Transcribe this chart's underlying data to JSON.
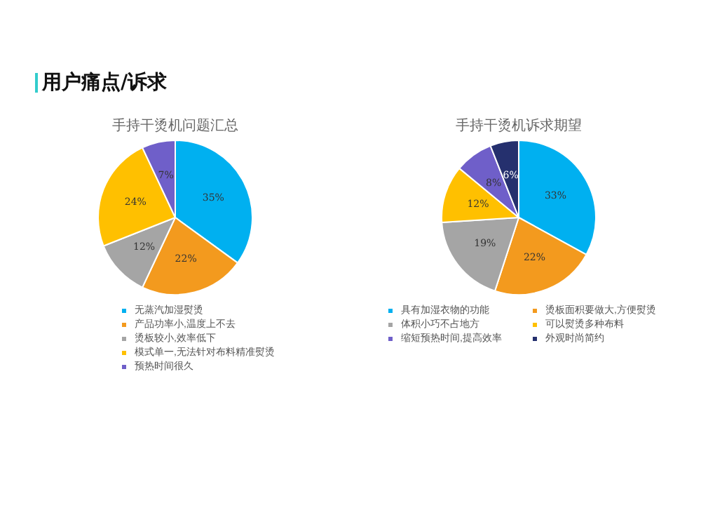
{
  "chart_data": [
    {
      "type": "pie",
      "title": "手持干烫机问题汇总",
      "annotations": [
        "用户痛点/诉求"
      ],
      "categories": [
        "无蒸汽加湿熨烫",
        "产品功率小,温度上不去",
        "烫板较小,效率低下",
        "模式单一,无法针对布料精准熨烫",
        "预热时间很久"
      ],
      "values": [
        35,
        22,
        12,
        24,
        7
      ],
      "colors": [
        "#00b0f0",
        "#f39a1e",
        "#a5a5a5",
        "#ffc000",
        "#6f5fc9"
      ],
      "value_labels": [
        "35%",
        "22%",
        "12%",
        "24%",
        "7%"
      ],
      "legend": "bottom"
    },
    {
      "type": "pie",
      "title": "手持干烫机诉求期望",
      "categories": [
        "具有加湿衣物的功能",
        "烫板面积要做大,方便熨烫",
        "体积小巧不占地方",
        "可以熨烫多种布料",
        "缩短预热时间,提高效率",
        "外观时尚简约"
      ],
      "values": [
        33,
        22,
        19,
        12,
        8,
        6
      ],
      "colors": [
        "#00b0f0",
        "#f39a1e",
        "#a5a5a5",
        "#ffc000",
        "#6f5fc9",
        "#25306e"
      ],
      "value_labels": [
        "33%",
        "22%",
        "19%",
        "12%",
        "8%",
        "6%"
      ],
      "legend": "bottom"
    }
  ]
}
